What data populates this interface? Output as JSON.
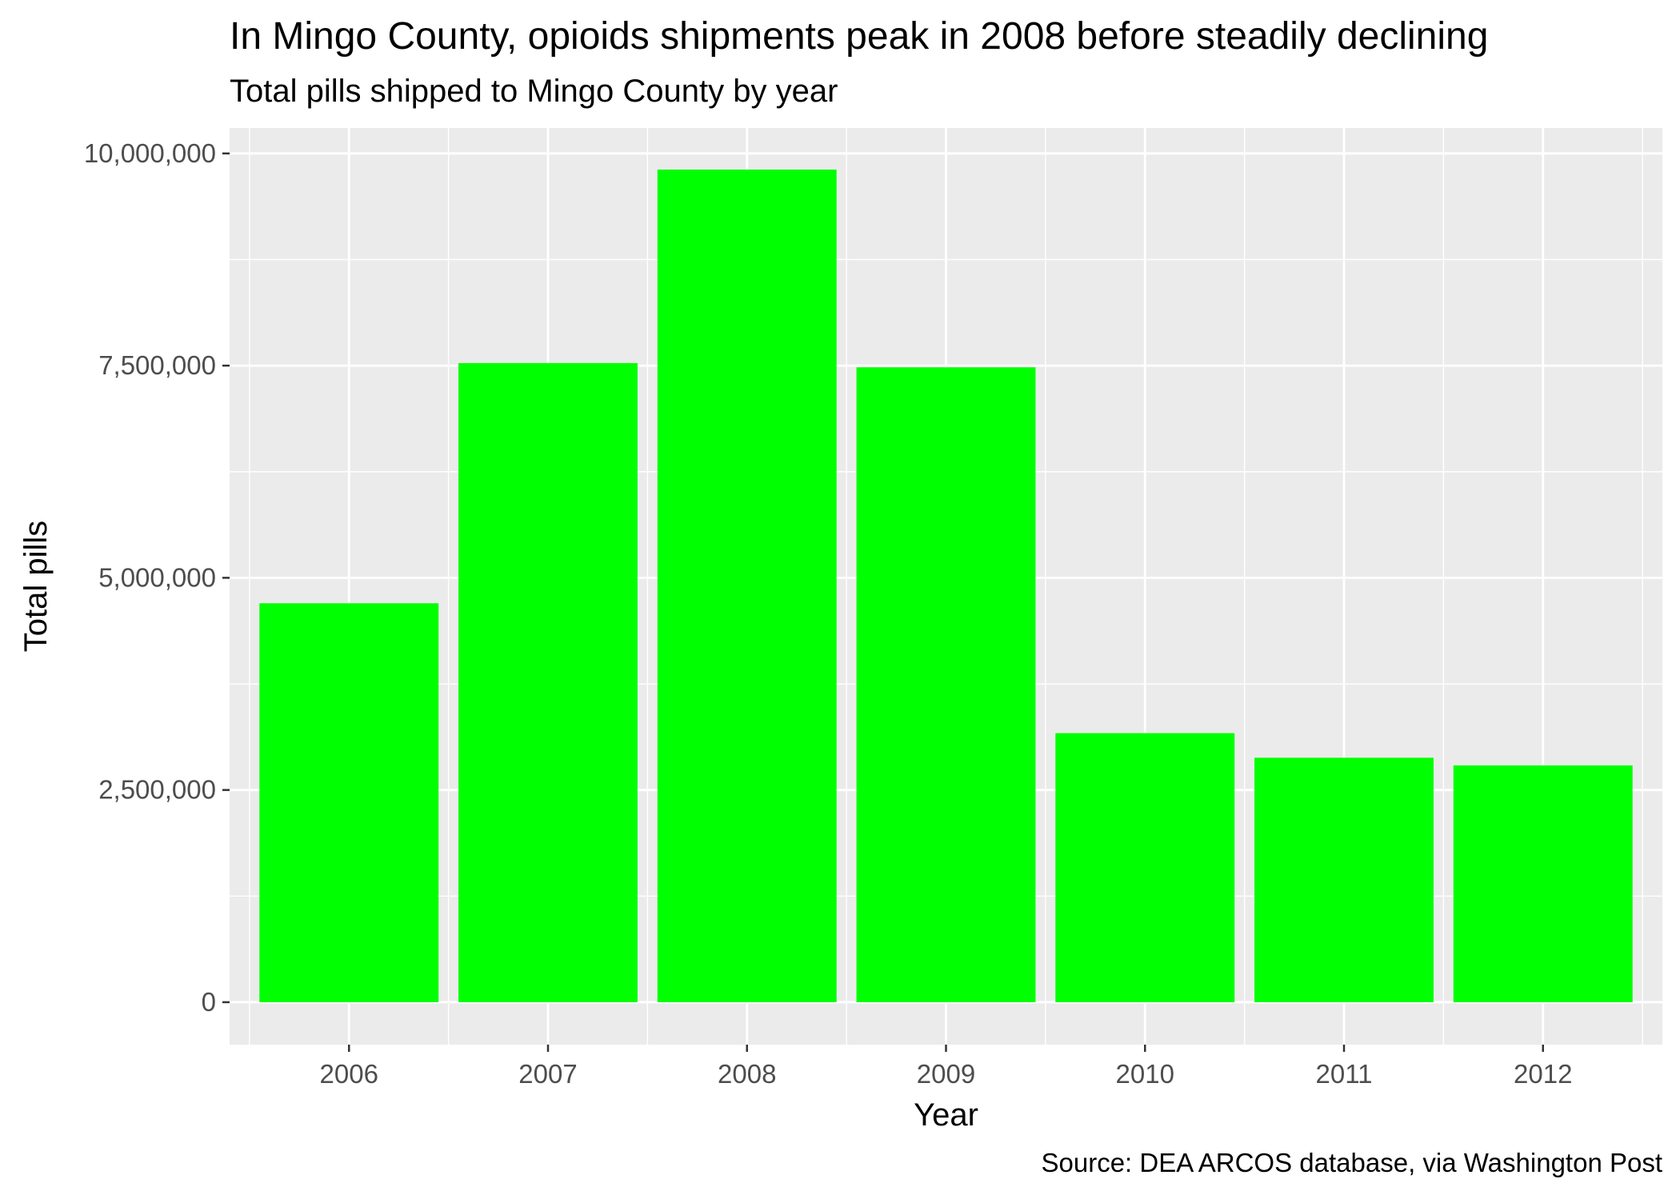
{
  "chart_data": {
    "type": "bar",
    "title": "In Mingo County, opioids shipments peak in 2008 before steadily declining",
    "subtitle": "Total pills shipped to Mingo County by year",
    "xlabel": "Year",
    "ylabel": "Total pills",
    "caption": "Source: DEA ARCOS database, via Washington Post",
    "categories": [
      "2006",
      "2007",
      "2008",
      "2009",
      "2010",
      "2011",
      "2012"
    ],
    "values": [
      4700000,
      7530000,
      9810000,
      7480000,
      3170000,
      2880000,
      2790000
    ],
    "ylim": [
      -500000,
      10300000
    ],
    "y_ticks": [
      0,
      2500000,
      5000000,
      7500000,
      10000000
    ],
    "y_tick_labels": [
      "0",
      "2,500,000",
      "5,000,000",
      "7,500,000",
      "10,000,000"
    ],
    "bar_color": "#00ff00",
    "panel_background": "#ebebeb",
    "grid_color": "#ffffff",
    "grid": true,
    "legend": "none"
  }
}
